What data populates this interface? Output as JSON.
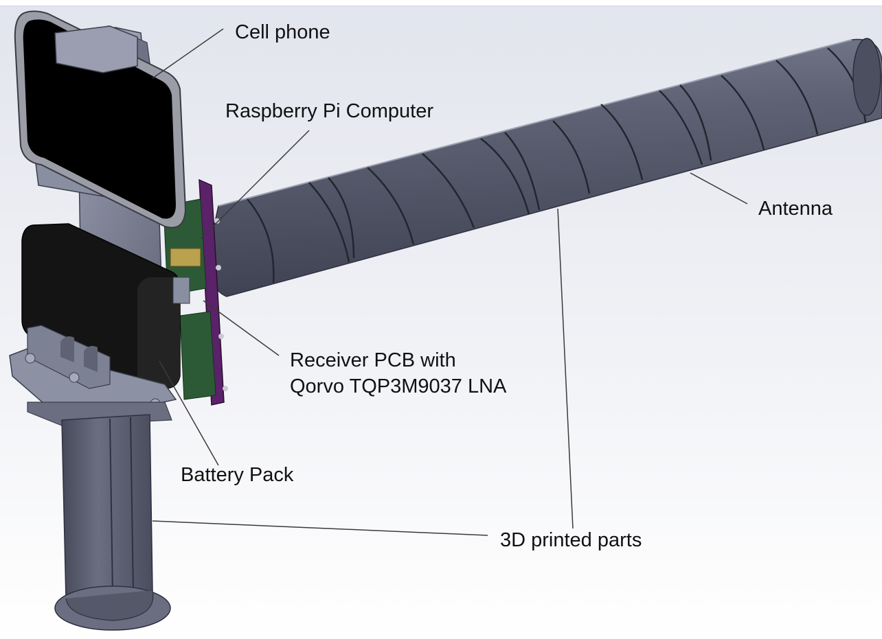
{
  "labels": {
    "cell_phone": "Cell phone",
    "raspberry_pi": "Raspberry Pi Computer",
    "antenna": "Antenna",
    "receiver_line1": "Receiver PCB with",
    "receiver_line2": "Qorvo TQP3M9037 LNA",
    "battery_pack": "Battery Pack",
    "printed_parts": "3D printed parts"
  },
  "colors": {
    "background_top": "#e3e6ee",
    "background_bottom": "#ffffff",
    "body_metal": "#5c6072",
    "body_dark": "#3c3f4d",
    "body_light": "#8a8ea1",
    "phone_frame": "#9a9ca6",
    "phone_screen": "#000000",
    "battery": "#141414",
    "pcb_purple": "#5a2268",
    "pcb_green": "#2c5a36",
    "leader_line": "#3a3a3a"
  }
}
